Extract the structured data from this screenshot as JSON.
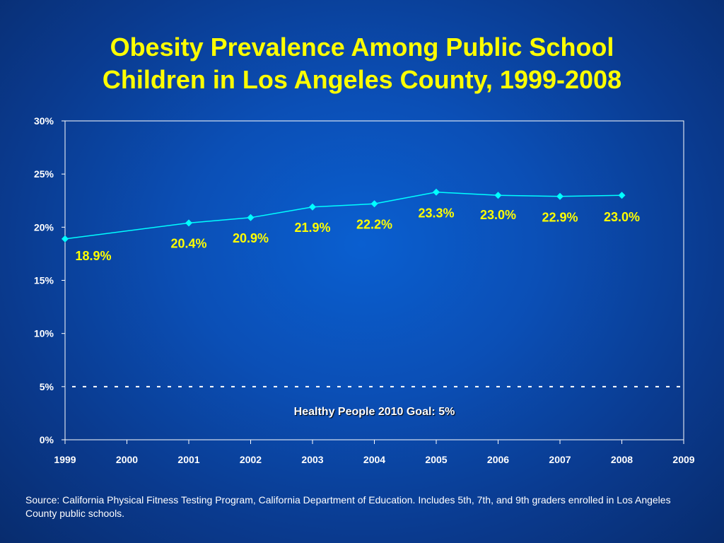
{
  "slide": {
    "title_line1": "Obesity Prevalence Among Public School",
    "title_line2": "Children in Los Angeles County, 1999-2008",
    "source_note": "Source: California Physical Fitness Testing Program, California Department of Education. Includes 5th, 7th, and 9th graders enrolled in Los Angeles County public schools."
  },
  "chart_data": {
    "type": "line",
    "title": "Obesity Prevalence Among Public School Children in Los Angeles County, 1999-2008",
    "xlim": [
      1999,
      2009
    ],
    "x_ticks": [
      "1999",
      "2000",
      "2001",
      "2002",
      "2003",
      "2004",
      "2005",
      "2006",
      "2007",
      "2008",
      "2009"
    ],
    "ylim": [
      0,
      30
    ],
    "y_ticks": [
      "0%",
      "5%",
      "10%",
      "15%",
      "20%",
      "25%",
      "30%"
    ],
    "grid": false,
    "series": [
      {
        "x": [
          1999,
          2001,
          2002,
          2003,
          2004,
          2005,
          2006,
          2007,
          2008
        ],
        "y": [
          18.9,
          20.4,
          20.9,
          21.9,
          22.2,
          23.3,
          23.0,
          22.9,
          23.0
        ],
        "labels": [
          "18.9%",
          "20.4%",
          "20.9%",
          "21.9%",
          "22.2%",
          "23.3%",
          "23.0%",
          "22.9%",
          "23.0%"
        ],
        "color": "#00ffff"
      }
    ],
    "reference_line": {
      "y": 5,
      "style": "dashed",
      "label": "Healthy People 2010 Goal: 5%"
    },
    "colors": {
      "line": "#00ffff",
      "data_label": "#ffff00",
      "axis": "#ffffff",
      "goal_label": "#ffffff"
    }
  }
}
